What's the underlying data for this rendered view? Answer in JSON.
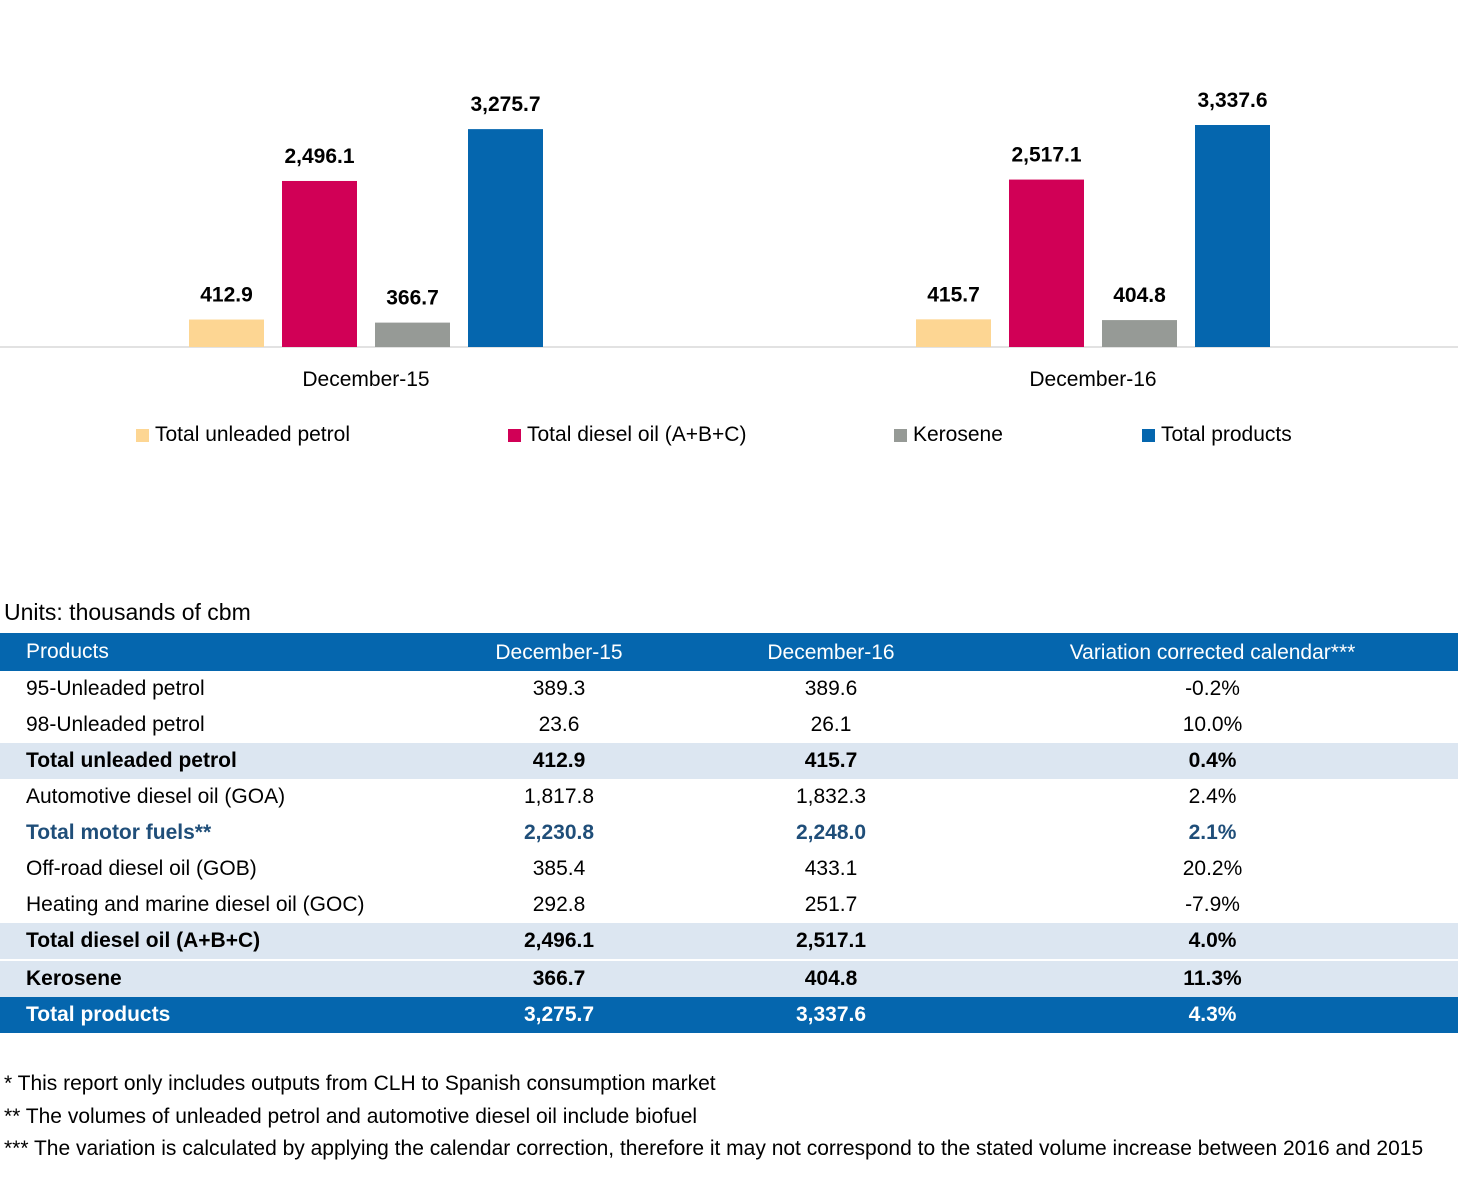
{
  "chart_data": {
    "type": "bar",
    "categories": [
      "December-15",
      "December-16"
    ],
    "series": [
      {
        "name": "Total unleaded petrol",
        "color": "#fdd693",
        "values": [
          412.9,
          415.7
        ],
        "labels": [
          "412.9",
          "415.7"
        ]
      },
      {
        "name": "Total diesel oil (A+B+C)",
        "color": "#d10056",
        "values": [
          2496.1,
          2517.1
        ],
        "labels": [
          "2,496.1",
          "2,517.1"
        ]
      },
      {
        "name": "Kerosene",
        "color": "#969a96",
        "values": [
          366.7,
          404.8
        ],
        "labels": [
          "366.7",
          "404.8"
        ]
      },
      {
        "name": "Total products",
        "color": "#0566ae",
        "values": [
          3275.7,
          3337.6
        ],
        "labels": [
          "3,275.7",
          "3,337.6"
        ]
      }
    ],
    "title": "",
    "xlabel": "",
    "ylabel": "",
    "axis_visible": false,
    "grid": false,
    "legend_position": "bottom"
  },
  "table": {
    "units": "Units: thousands of cbm",
    "headers": [
      "Products",
      "December-15",
      "December-16",
      "Variation corrected calendar***"
    ],
    "rows": [
      {
        "style": "normal",
        "cells": [
          "95-Unleaded petrol",
          "389.3",
          "389.6",
          "-0.2%"
        ]
      },
      {
        "style": "normal",
        "cells": [
          "98-Unleaded petrol",
          "23.6",
          "26.1",
          "10.0%"
        ]
      },
      {
        "style": "subtotal",
        "cells": [
          "Total unleaded petrol",
          "412.9",
          "415.7",
          "0.4%"
        ]
      },
      {
        "style": "normal",
        "cells": [
          "Automotive diesel oil (GOA)",
          "1,817.8",
          "1,832.3",
          "2.4%"
        ]
      },
      {
        "style": "highlight",
        "cells": [
          "Total motor fuels**",
          "2,230.8",
          "2,248.0",
          "2.1%"
        ]
      },
      {
        "style": "normal",
        "cells": [
          "Off-road diesel oil (GOB)",
          "385.4",
          "433.1",
          "20.2%"
        ]
      },
      {
        "style": "normal",
        "cells": [
          "Heating and marine diesel oil (GOC)",
          "292.8",
          "251.7",
          "-7.9%"
        ]
      },
      {
        "style": "subtotal",
        "cells": [
          "Total diesel oil (A+B+C)",
          "2,496.1",
          "2,517.1",
          "4.0%"
        ]
      },
      {
        "style": "subtotal-sep",
        "cells": [
          "Kerosene",
          "366.7",
          "404.8",
          "11.3%"
        ]
      },
      {
        "style": "total",
        "cells": [
          "Total products",
          "3,275.7",
          "3,337.6",
          "4.3%"
        ]
      }
    ]
  },
  "notes": [
    "* This report only includes outputs from CLH to Spanish consumption market",
    "** The volumes of unleaded petrol and automotive diesel oil include biofuel",
    "*** The variation is calculated by applying the calendar correction, therefore it may not correspond to the stated volume increase between 2016 and 2015"
  ]
}
